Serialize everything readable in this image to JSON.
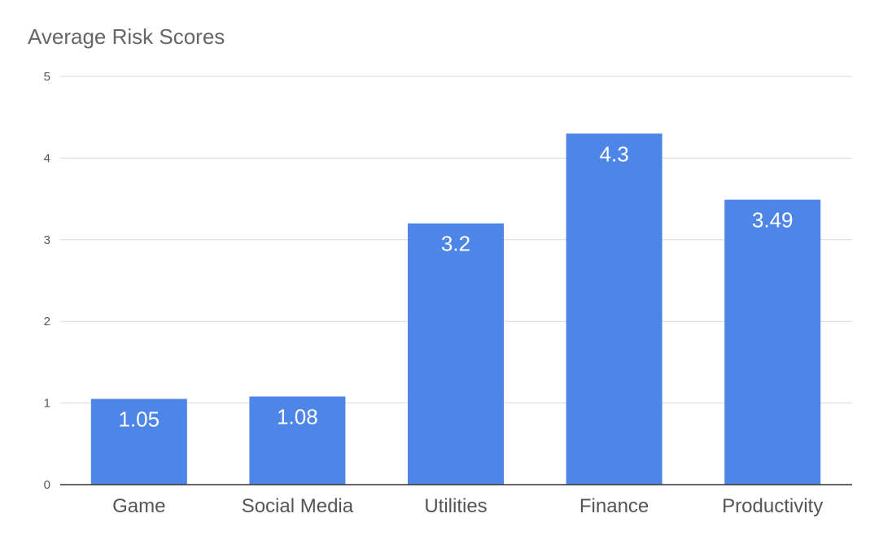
{
  "chart_data": {
    "type": "bar",
    "title": "Average Risk Scores",
    "categories": [
      "Game",
      "Social Media",
      "Utilities",
      "Finance",
      "Productivity"
    ],
    "values": [
      1.05,
      1.08,
      3.2,
      4.3,
      3.49
    ],
    "data_labels": [
      "1.05",
      "1.08",
      "3.2",
      "4.3",
      "3.49"
    ],
    "xlabel": "",
    "ylabel": "",
    "ylim": [
      0,
      5
    ],
    "yticks": [
      0,
      1,
      2,
      3,
      4,
      5
    ],
    "grid": true,
    "legend": "none",
    "bar_color": "#4e86e8",
    "grid_color": "#d9d9d9",
    "axis_color": "#333333"
  }
}
